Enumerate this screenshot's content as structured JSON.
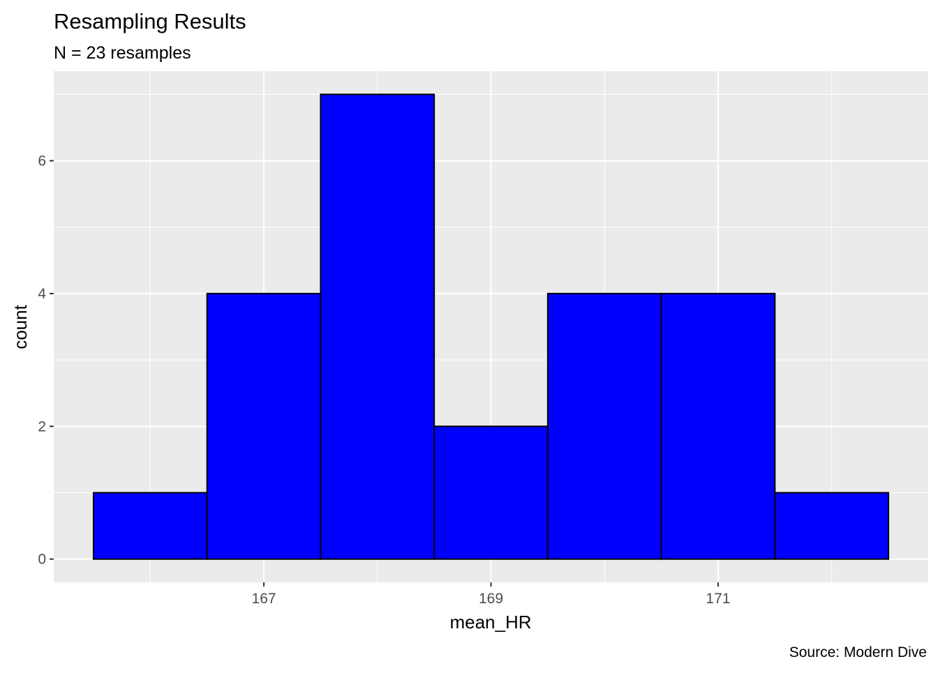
{
  "chart_data": {
    "type": "bar",
    "title": "Resampling Results",
    "subtitle": "N = 23 resamples",
    "xlabel": "mean_HR",
    "ylabel": "count",
    "caption": "Source: Modern Dive",
    "bins": [
      {
        "x0": 165.5,
        "x1": 166.5,
        "count": 1
      },
      {
        "x0": 166.5,
        "x1": 167.5,
        "count": 4
      },
      {
        "x0": 167.5,
        "x1": 168.5,
        "count": 7
      },
      {
        "x0": 168.5,
        "x1": 169.5,
        "count": 2
      },
      {
        "x0": 169.5,
        "x1": 170.5,
        "count": 4
      },
      {
        "x0": 170.5,
        "x1": 171.5,
        "count": 4
      },
      {
        "x0": 171.5,
        "x1": 172.5,
        "count": 1
      }
    ],
    "xlim": [
      165.15,
      172.85
    ],
    "ylim": [
      -0.35,
      7.35
    ],
    "x_ticks": [
      167,
      169,
      171
    ],
    "x_minor_ticks": [
      166,
      168,
      170,
      172
    ],
    "y_ticks": [
      0,
      2,
      4,
      6
    ],
    "y_minor_ticks": [
      1,
      3,
      5,
      7
    ],
    "grid": true,
    "colors": {
      "fill": "#0000FF",
      "outline": "#000000",
      "panel": "#EBEBEB",
      "grid": "#FFFFFF",
      "tick_text": "#4D4D4D"
    }
  }
}
